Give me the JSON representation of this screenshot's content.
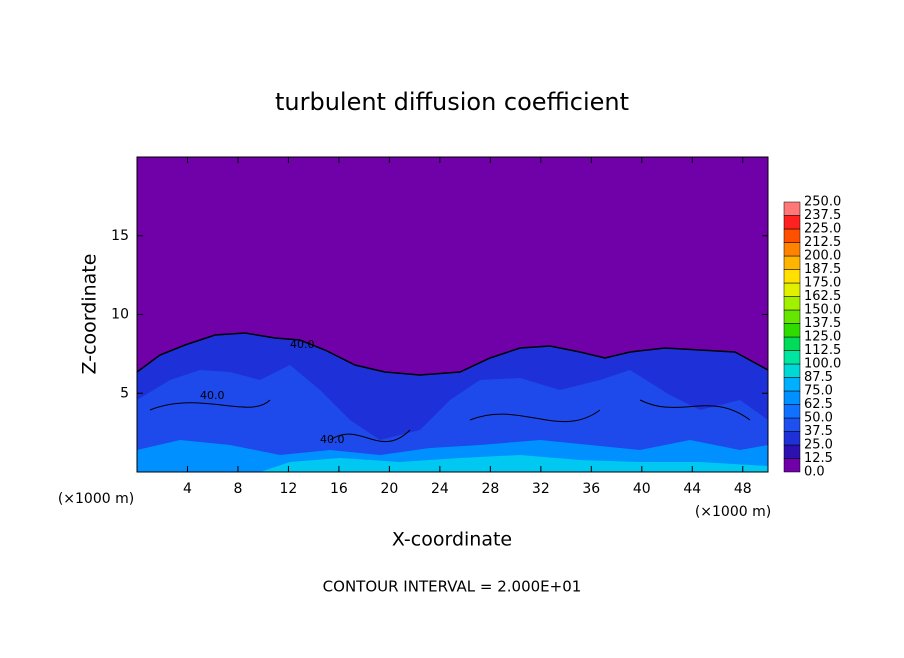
{
  "chart_data": {
    "type": "contour",
    "title": "turbulent diffusion coefficient",
    "x_label": "X-coordinate",
    "y_label": "Z-coordinate",
    "x_unit": "(×1000 m)",
    "y_unit": "(×1000 m)",
    "footnote": "CONTOUR INTERVAL = 2.000E+01",
    "contour_labels": [
      "40.0",
      "40.0",
      "40.0"
    ],
    "xlim": [
      0,
      50
    ],
    "xticks": [
      4,
      8,
      12,
      16,
      20,
      24,
      28,
      32,
      36,
      40,
      44,
      48
    ],
    "ylim": [
      0,
      20
    ],
    "yticks": [
      5,
      10,
      15
    ],
    "levels": [
      {
        "value": 0,
        "label": "0.0"
      },
      12.5,
      {
        "value": 25,
        "label": "25.0"
      },
      37.5,
      {
        "value": 50,
        "label": "50.0"
      },
      62.5,
      {
        "value": 75,
        "label": "75.0"
      },
      87.5,
      {
        "value": 100,
        "label": "100.0"
      },
      112.5,
      {
        "value": 125,
        "label": "125.0"
      },
      137.5,
      {
        "value": 150,
        "label": "150.0"
      },
      162.5,
      {
        "value": 175,
        "label": "175.0"
      },
      187.5,
      {
        "value": 200,
        "label": "200.0"
      },
      212.5,
      {
        "value": 225,
        "label": "225.0"
      },
      237.5,
      {
        "value": 250,
        "label": "250.0"
      }
    ],
    "colors": [
      "#7000a8",
      "#2c10b0",
      "#1e30d8",
      "#1e50f0",
      "#1070ff",
      "#0090ff",
      "#00b0ff",
      "#00d8d8",
      "#00e6a0",
      "#00dc5a",
      "#30dc00",
      "#64e600",
      "#a0f000",
      "#e0f000",
      "#ffe000",
      "#ffb400",
      "#ff8200",
      "#ff5000",
      "#ff2020",
      "#ff7878"
    ]
  }
}
